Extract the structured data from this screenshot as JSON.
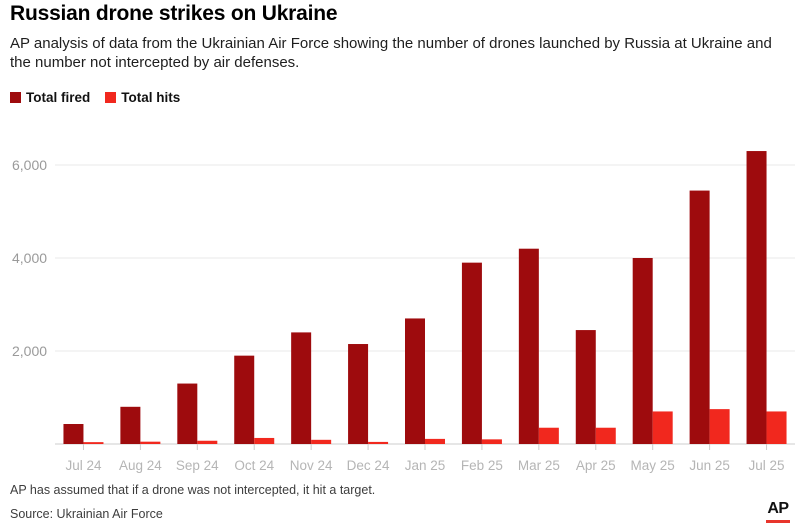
{
  "chart_data": {
    "type": "bar",
    "title": "Russian drone strikes on Ukraine",
    "subtitle": "AP analysis of data from the Ukrainian Air Force showing the number of drones launched by Russia at Ukraine and the number not intercepted by air defenses.",
    "categories": [
      "Jul 24",
      "Aug 24",
      "Sep 24",
      "Oct 24",
      "Nov 24",
      "Dec 24",
      "Jan 25",
      "Feb 25",
      "Mar 25",
      "Apr 25",
      "May 25",
      "Jun 25",
      "Jul 25"
    ],
    "series": [
      {
        "name": "Total fired",
        "color": "#9e0b0d",
        "values": [
          430,
          800,
          1300,
          1900,
          2400,
          2150,
          2700,
          3900,
          4200,
          2450,
          4000,
          5450,
          6300
        ]
      },
      {
        "name": "Total hits",
        "color": "#f1281e",
        "values": [
          40,
          50,
          70,
          130,
          90,
          45,
          110,
          100,
          350,
          350,
          700,
          750,
          700
        ]
      }
    ],
    "xlabel": "",
    "ylabel": "",
    "ylim": [
      0,
      6550
    ],
    "yticks": [
      2000,
      4000,
      6000
    ],
    "ytick_labels": [
      "2,000",
      "4,000",
      "6,000"
    ],
    "grid": true,
    "legend_position": "top-left"
  },
  "footer": {
    "note": "AP has assumed that if a drone was not intercepted, it hit a target.",
    "source": "Source: Ukrainian Air Force",
    "logo": "AP",
    "logo_underline_color": "#e8352c"
  },
  "style_colors": {
    "gridline": "#e9e9e9",
    "axis_line": "#cccccc",
    "y_tick_label": "#9a9a9a",
    "x_tick_label": "#b5b5b5"
  }
}
